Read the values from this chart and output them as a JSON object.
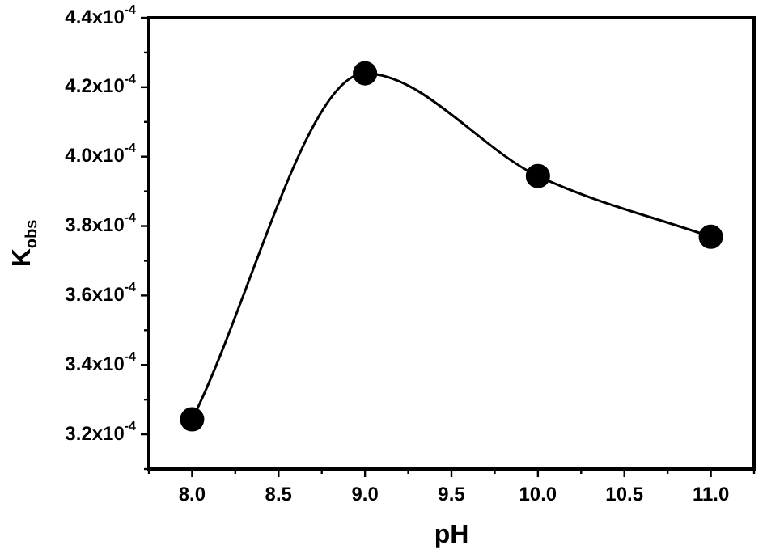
{
  "chart_data": {
    "type": "line",
    "xlabel": "pH",
    "ylabel": "K$_{obs}$",
    "x": [
      8.0,
      9.0,
      10.0,
      11.0
    ],
    "series": [
      {
        "color": "#000000",
        "values": [
          0.0003243,
          0.000424,
          0.0003944,
          0.0003769
        ]
      }
    ],
    "xlim": [
      7.75,
      11.25
    ],
    "xticks": [
      {
        "value": 7.75,
        "label": null
      },
      {
        "value": 8.0,
        "label": "8.0"
      },
      {
        "value": 8.25,
        "label": null
      },
      {
        "value": 8.5,
        "label": "8.5"
      },
      {
        "value": 8.75,
        "label": null
      },
      {
        "value": 9.0,
        "label": "9.0"
      },
      {
        "value": 9.25,
        "label": null
      },
      {
        "value": 9.5,
        "label": "9.5"
      },
      {
        "value": 9.75,
        "label": null
      },
      {
        "value": 10.0,
        "label": "10.0"
      },
      {
        "value": 10.25,
        "label": null
      },
      {
        "value": 10.5,
        "label": "10.5"
      },
      {
        "value": 10.75,
        "label": null
      },
      {
        "value": 11.0,
        "label": "11.0"
      },
      {
        "value": 11.25,
        "label": null
      }
    ],
    "ylim": [
      0.00031,
      0.00044
    ],
    "yticks": [
      {
        "value": 0.00031,
        "label": null
      },
      {
        "value": 0.00032,
        "label": "3.2x10$^{-4}$"
      },
      {
        "value": 0.00033,
        "label": null
      },
      {
        "value": 0.00034,
        "label": "3.4x10$^{-4}$"
      },
      {
        "value": 0.00035,
        "label": null
      },
      {
        "value": 0.00036,
        "label": "3.6x10$^{-4}$"
      },
      {
        "value": 0.00037,
        "label": null
      },
      {
        "value": 0.00038,
        "label": "3.8x10$^{-4}$"
      },
      {
        "value": 0.00039,
        "label": null
      },
      {
        "value": 0.0004,
        "label": "4.0x10$^{-4}$"
      },
      {
        "value": 0.00041,
        "label": null
      },
      {
        "value": 0.00042,
        "label": "4.2x10$^{-4}$"
      },
      {
        "value": 0.00043,
        "label": null
      },
      {
        "value": 0.00044,
        "label": "4.4x10$^{-4}$"
      }
    ],
    "grid": false,
    "legend": false,
    "marker": "circle",
    "line_style": "solid"
  }
}
